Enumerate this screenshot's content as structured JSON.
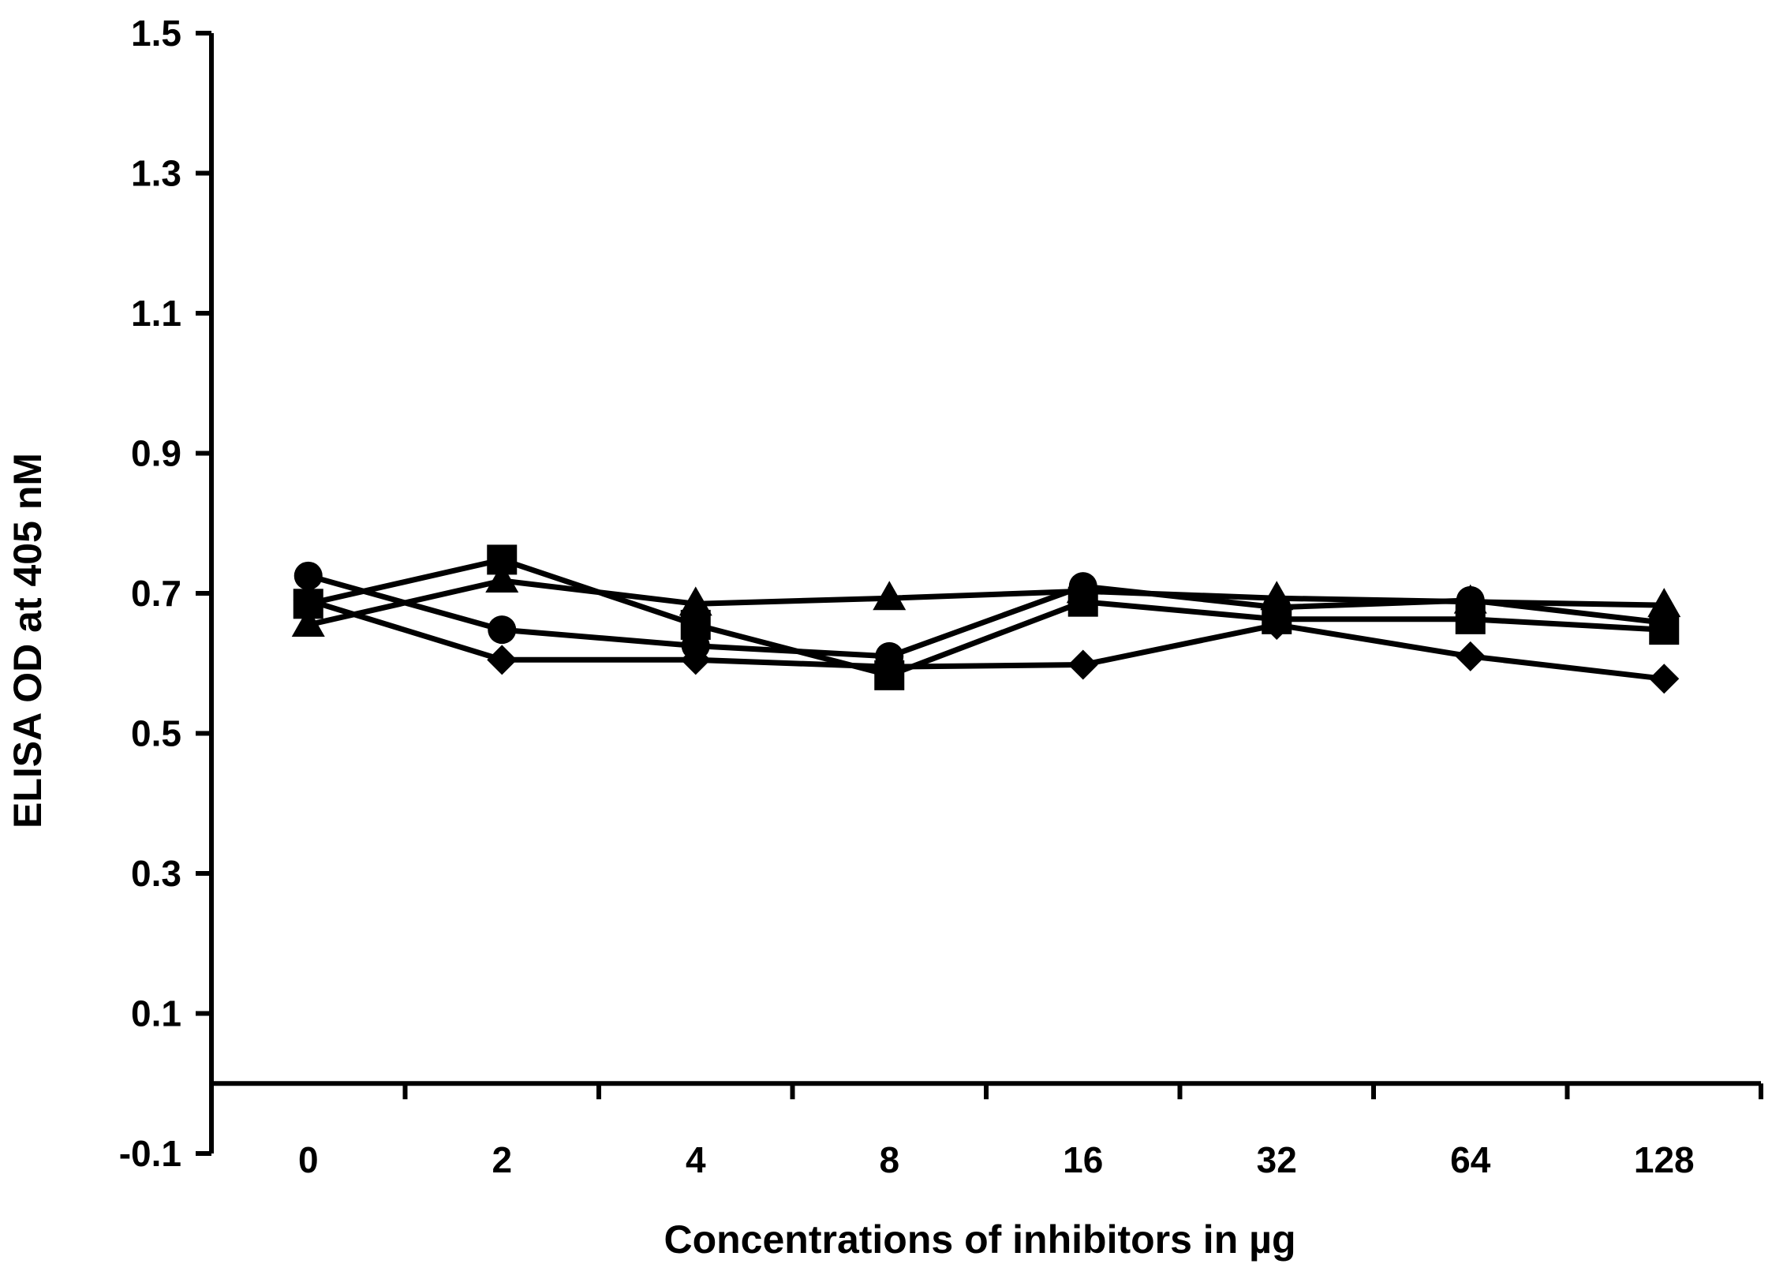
{
  "chart_data": {
    "type": "line",
    "title": "",
    "xlabel": "Concentrations of inhibitors in µg",
    "ylabel": "ELISA OD at 405 nM",
    "categories": [
      "0",
      "2",
      "4",
      "8",
      "16",
      "32",
      "64",
      "128"
    ],
    "yticks": [
      "-0.1",
      "0.1",
      "0.3",
      "0.5",
      "0.7",
      "0.9",
      "1.1",
      "1.3",
      "1.5"
    ],
    "ylim": [
      -0.1,
      1.5
    ],
    "x_axis_crosses_at": 0.0,
    "grid": false,
    "legend": "none",
    "line_color": "#000000",
    "series": [
      {
        "marker": "diamond",
        "values": [
          0.69,
          0.605,
          0.605,
          0.595,
          0.598,
          0.655,
          0.61,
          0.578
        ]
      },
      {
        "marker": "square",
        "values": [
          0.685,
          0.748,
          0.655,
          0.583,
          0.688,
          0.663,
          0.663,
          0.648
        ]
      },
      {
        "marker": "triangle",
        "values": [
          0.655,
          0.718,
          0.685,
          0.693,
          0.703,
          0.693,
          0.688,
          0.683
        ]
      },
      {
        "marker": "circle",
        "values": [
          0.725,
          0.648,
          0.625,
          0.61,
          0.71,
          0.68,
          0.69,
          0.658
        ]
      }
    ]
  }
}
